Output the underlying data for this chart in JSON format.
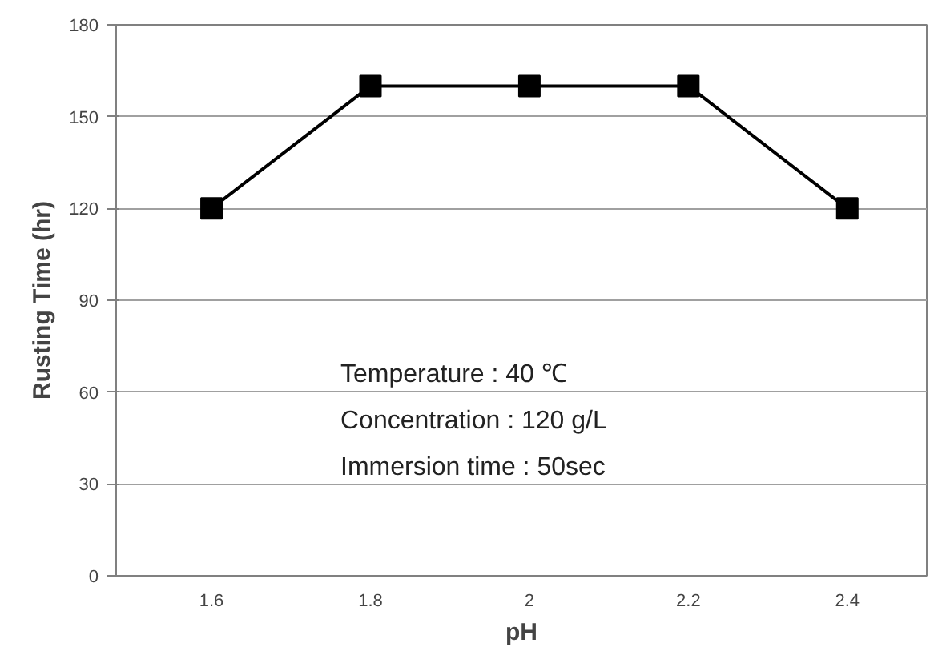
{
  "chart_data": {
    "type": "line",
    "xlabel": "pH",
    "ylabel": "Rusting Time (hr)",
    "categories": [
      "1.6",
      "1.8",
      "2",
      "2.2",
      "2.4"
    ],
    "series": [
      {
        "color": "#000000",
        "values": [
          120,
          160,
          160,
          160,
          120
        ]
      }
    ],
    "ylim": [
      0,
      180
    ],
    "yticks": [
      0,
      30,
      60,
      90,
      120,
      150,
      180
    ],
    "grid": "y",
    "marker": "square",
    "line_style": "solid",
    "annotations": [
      "Temperature : 40 ℃",
      "Concentration : 120 g/L",
      "Immersion time : 50sec"
    ]
  }
}
